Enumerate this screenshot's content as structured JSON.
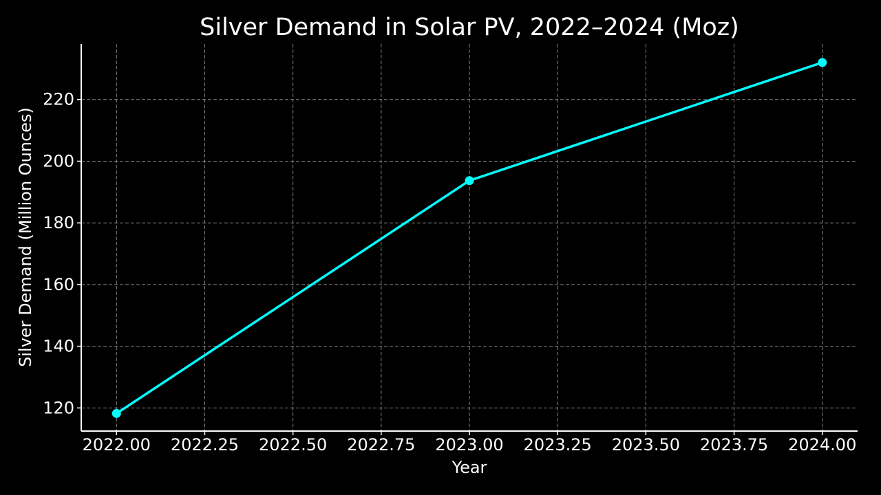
{
  "chart_data": {
    "type": "line",
    "title": "Silver Demand in Solar PV, 2022–2024 (Moz)",
    "xlabel": "Year",
    "ylabel": "Silver Demand (Million Ounces)",
    "x_ticks": [
      "2022.00",
      "2022.25",
      "2022.50",
      "2022.75",
      "2023.00",
      "2023.25",
      "2023.50",
      "2023.75",
      "2024.00"
    ],
    "y_ticks": [
      "120",
      "140",
      "160",
      "180",
      "200",
      "220"
    ],
    "xlim": [
      2021.9,
      2024.1
    ],
    "ylim": [
      112.5,
      238.0
    ],
    "grid": true,
    "series": [
      {
        "color": "#00ffff",
        "x": [
          2022,
          2023,
          2024
        ],
        "values": [
          118.2,
          193.7,
          232.0
        ]
      }
    ]
  }
}
